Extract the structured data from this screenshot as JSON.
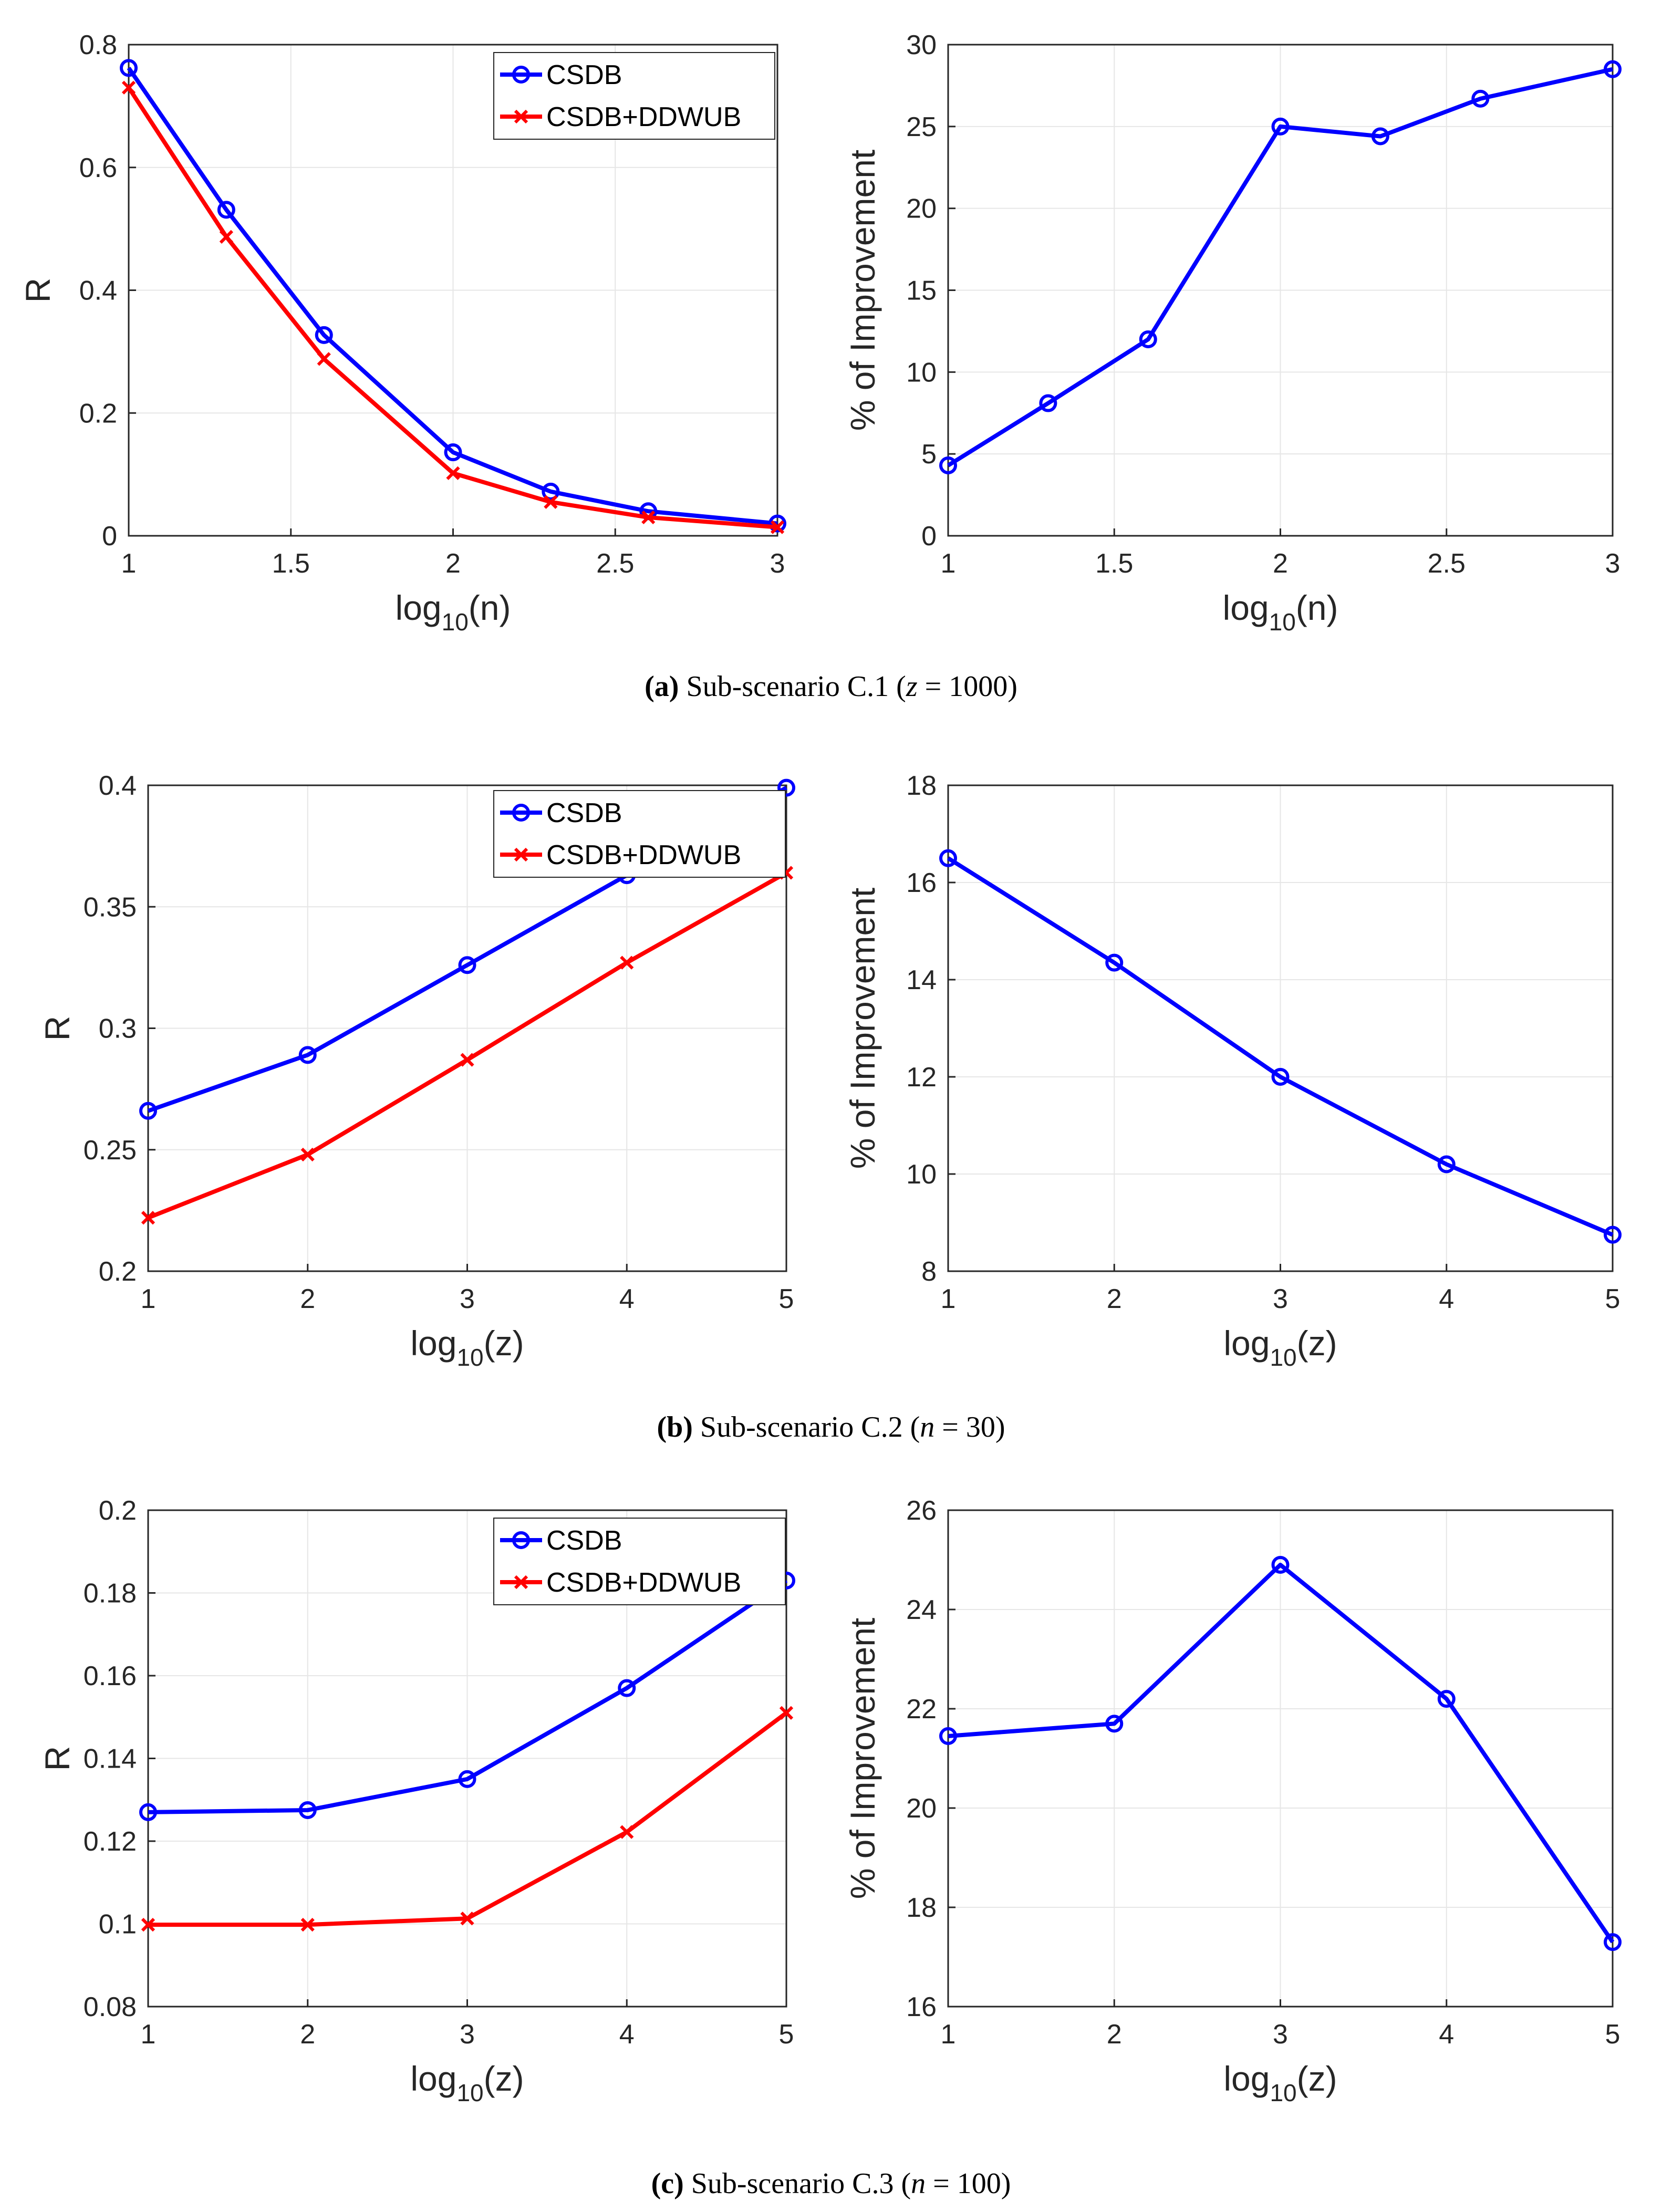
{
  "colors": {
    "csdb": "#0000ff",
    "ddwub": "#ff0000",
    "axis": "#262626",
    "grid": "#e6e6e6"
  },
  "legend_markers": {
    "csdb": "circle",
    "ddwub": "x-cross"
  },
  "chart_data": [
    {
      "type": "line",
      "panel": "a-left",
      "xlabel_base": "log",
      "xlabel_sub": "10",
      "xlabel_arg": "(n)",
      "ylabel": "R",
      "xlim": [
        1,
        3
      ],
      "ylim": [
        0,
        0.8
      ],
      "xticks": [
        "1",
        "1.5",
        "2",
        "2.5",
        "3"
      ],
      "yticks": [
        "0",
        "0.2",
        "0.4",
        "0.6",
        "0.8"
      ],
      "legend": [
        "CSDB",
        "CSDB+DDWUB"
      ],
      "legend_position": "top-right",
      "x": [
        1,
        1.301,
        1.602,
        2,
        2.301,
        2.602,
        3
      ],
      "series": [
        {
          "name": "CSDB",
          "values": [
            0.762,
            0.531,
            0.327,
            0.136,
            0.072,
            0.04,
            0.02
          ]
        },
        {
          "name": "CSDB+DDWUB",
          "values": [
            0.73,
            0.487,
            0.288,
            0.102,
            0.055,
            0.03,
            0.014
          ]
        }
      ]
    },
    {
      "type": "line",
      "panel": "a-right",
      "xlabel_base": "log",
      "xlabel_sub": "10",
      "xlabel_arg": "(n)",
      "ylabel": "% of Improvement",
      "xlim": [
        1,
        3
      ],
      "ylim": [
        0,
        30
      ],
      "xticks": [
        "1",
        "1.5",
        "2",
        "2.5",
        "3"
      ],
      "yticks": [
        "0",
        "5",
        "10",
        "15",
        "20",
        "25",
        "30"
      ],
      "legend": [],
      "x": [
        1,
        1.301,
        1.602,
        2,
        2.301,
        2.602,
        3
      ],
      "series": [
        {
          "name": "% of Improvement",
          "values": [
            4.3,
            8.1,
            12.0,
            25.0,
            24.4,
            26.7,
            28.5
          ]
        }
      ]
    },
    {
      "type": "line",
      "panel": "b-left",
      "xlabel_base": "log",
      "xlabel_sub": "10",
      "xlabel_arg": "(z)",
      "ylabel": "R",
      "xlim": [
        1,
        5
      ],
      "ylim": [
        0.2,
        0.4
      ],
      "xticks": [
        "1",
        "2",
        "3",
        "4",
        "5"
      ],
      "yticks": [
        "0.2",
        "0.25",
        "0.3",
        "0.35",
        "0.4"
      ],
      "legend": [
        "CSDB",
        "CSDB+DDWUB"
      ],
      "legend_position": "top-right",
      "x": [
        1,
        2,
        3,
        4,
        5
      ],
      "series": [
        {
          "name": "CSDB",
          "values": [
            0.266,
            0.289,
            0.326,
            0.363,
            0.399
          ]
        },
        {
          "name": "CSDB+DDWUB",
          "values": [
            0.222,
            0.248,
            0.287,
            0.327,
            0.364
          ]
        }
      ]
    },
    {
      "type": "line",
      "panel": "b-right",
      "xlabel_base": "log",
      "xlabel_sub": "10",
      "xlabel_arg": "(z)",
      "ylabel": "% of Improvement",
      "xlim": [
        1,
        5
      ],
      "ylim": [
        8,
        18
      ],
      "xticks": [
        "1",
        "2",
        "3",
        "4",
        "5"
      ],
      "yticks": [
        "8",
        "10",
        "12",
        "14",
        "16",
        "18"
      ],
      "legend": [],
      "x": [
        1,
        2,
        3,
        4,
        5
      ],
      "series": [
        {
          "name": "% of Improvement",
          "values": [
            16.5,
            14.35,
            12.0,
            10.2,
            8.75
          ]
        }
      ]
    },
    {
      "type": "line",
      "panel": "c-left",
      "xlabel_base": "log",
      "xlabel_sub": "10",
      "xlabel_arg": "(z)",
      "ylabel": "R",
      "xlim": [
        1,
        5
      ],
      "ylim": [
        0.08,
        0.2
      ],
      "xticks": [
        "1",
        "2",
        "3",
        "4",
        "5"
      ],
      "yticks": [
        "0.08",
        "0.1",
        "0.12",
        "0.14",
        "0.16",
        "0.18",
        "0.2"
      ],
      "legend": [
        "CSDB",
        "CSDB+DDWUB"
      ],
      "legend_position": "top-right",
      "x": [
        1,
        2,
        3,
        4,
        5
      ],
      "series": [
        {
          "name": "CSDB",
          "values": [
            0.127,
            0.1275,
            0.135,
            0.157,
            0.183
          ]
        },
        {
          "name": "CSDB+DDWUB",
          "values": [
            0.0998,
            0.0998,
            0.1013,
            0.1222,
            0.151
          ]
        }
      ]
    },
    {
      "type": "line",
      "panel": "c-right",
      "xlabel_base": "log",
      "xlabel_sub": "10",
      "xlabel_arg": "(z)",
      "ylabel": "% of Improvement",
      "xlim": [
        1,
        5
      ],
      "ylim": [
        16,
        26
      ],
      "xticks": [
        "1",
        "2",
        "3",
        "4",
        "5"
      ],
      "yticks": [
        "16",
        "18",
        "20",
        "22",
        "24",
        "26"
      ],
      "legend": [],
      "x": [
        1,
        2,
        3,
        4,
        5
      ],
      "series": [
        {
          "name": "% of Improvement",
          "values": [
            21.45,
            21.7,
            24.9,
            22.2,
            17.3
          ]
        }
      ]
    }
  ],
  "captions": [
    {
      "letter": "(a)",
      "text": " Sub-scenario C.1 (",
      "var": "z",
      "rest": " = 1000)"
    },
    {
      "letter": "(b)",
      "text": " Sub-scenario C.2 (",
      "var": "n",
      "rest": " = 30)"
    },
    {
      "letter": "(c)",
      "text": " Sub-scenario C.3 (",
      "var": "n",
      "rest": " = 100)"
    }
  ]
}
